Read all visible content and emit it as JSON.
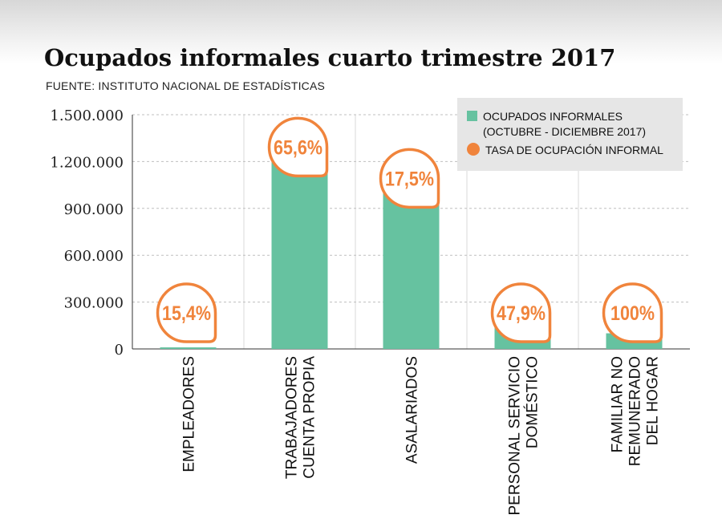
{
  "title": "Ocupados informales cuarto trimestre 2017",
  "source": "FUENTE: INSTITUTO NACIONAL DE ESTADÍSTICAS",
  "legend": {
    "series_line1": "OCUPADOS INFORMALES",
    "series_line2": "(OCTUBRE - DICIEMBRE 2017)",
    "rate_label": "TASA DE OCUPACIÓN INFORMAL"
  },
  "colors": {
    "bar": "#66c2a0",
    "bubble": "#f0843c",
    "grid": "#bfbfbf"
  },
  "chart_data": {
    "type": "bar",
    "title": "Ocupados informales cuarto trimestre 2017",
    "categories": [
      [
        "EMPLEADORES"
      ],
      [
        "TRABAJADORES",
        "CUENTA PROPIA"
      ],
      [
        "ASALARIADOS"
      ],
      [
        "PERSONAL SERVICIO",
        "DOMÉSTICO"
      ],
      [
        "FAMILIAR NO",
        "REMUNERADO",
        "DEL HOGAR"
      ]
    ],
    "series": [
      {
        "name": "OCUPADOS INFORMALES (OCTUBRE - DICIEMBRE 2017)",
        "values": [
          10000,
          1200000,
          1000000,
          140000,
          100000
        ]
      }
    ],
    "rates": [
      "15,4%",
      "65,6%",
      "17,5%",
      "47,9%",
      "100%"
    ],
    "yticks": [
      "0",
      "300.000",
      "600.000",
      "900.000",
      "1.200.000",
      "1.500.000"
    ],
    "ylim": [
      0,
      1500000
    ],
    "grid": true,
    "legend_position": "top-right"
  }
}
